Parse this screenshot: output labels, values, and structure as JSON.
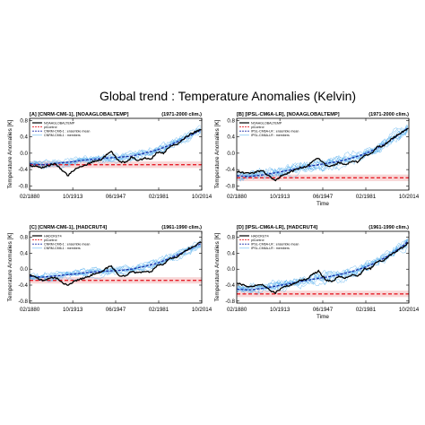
{
  "figure": {
    "title": "Global trend : Temperature Anomalies (Kelvin)"
  },
  "colors": {
    "obs": "#000000",
    "picontrol": "#e8202a",
    "ensemble_mean": "#1a2ea8",
    "members": "#5fb4ee",
    "band": "#f2b6b6"
  },
  "chart_data": [
    {
      "type": "line",
      "panel_title": "[A] [CNRM-CM6-1], [NOAAGLOBALTEMP]",
      "climatology": "(1971-2000 clim.)",
      "xlabel": "",
      "ylabel": "Temperature Anomalies [K]",
      "x_tick_labels": [
        "02/1880",
        "10/1913",
        "06/1947",
        "02/1981",
        "10/2014"
      ],
      "x_ticks": [
        1880.1,
        1913.8,
        1947.4,
        1981.1,
        2014.8
      ],
      "xlim": [
        1880,
        2014.8
      ],
      "ylim": [
        -0.9,
        0.85
      ],
      "y_ticks": [
        -0.8,
        -0.4,
        0.0,
        0.4,
        0.8
      ],
      "legend": [
        "NOAAGLOBALTEMP",
        "piControl",
        "CNRM-CM6-1 : ensemble mean",
        "CNRM-CM6-1 : members"
      ],
      "legend_position": "top-left",
      "picontrol_level": -0.28,
      "picontrol_band": [
        -0.36,
        -0.2
      ],
      "obs": {
        "x": [
          1880,
          1890,
          1900,
          1905,
          1910,
          1915,
          1920,
          1925,
          1930,
          1935,
          1940,
          1944,
          1950,
          1955,
          1960,
          1965,
          1970,
          1975,
          1980,
          1985,
          1990,
          1995,
          2000,
          2005,
          2010,
          2014
        ],
        "y": [
          -0.3,
          -0.35,
          -0.25,
          -0.4,
          -0.55,
          -0.4,
          -0.32,
          -0.27,
          -0.2,
          -0.18,
          -0.05,
          0.03,
          -0.2,
          -0.23,
          -0.1,
          -0.18,
          -0.12,
          -0.15,
          0.03,
          0.0,
          0.18,
          0.2,
          0.33,
          0.45,
          0.52,
          0.58
        ]
      },
      "ensemble_mean": {
        "x": [
          1880,
          1890,
          1900,
          1910,
          1920,
          1930,
          1940,
          1950,
          1960,
          1970,
          1980,
          1990,
          2000,
          2010,
          2014
        ],
        "y": [
          -0.26,
          -0.28,
          -0.25,
          -0.22,
          -0.18,
          -0.15,
          -0.12,
          -0.1,
          -0.07,
          0.0,
          0.08,
          0.2,
          0.34,
          0.5,
          0.56
        ]
      },
      "members_spread": 0.12,
      "members_count": 10
    },
    {
      "type": "line",
      "panel_title": "[B] [IPSL-CM6A-LR], [NOAAGLOBALTEMP]",
      "climatology": "(1971-2000 clim.)",
      "xlabel": "Time",
      "ylabel": "Temperature Anomalies [K]",
      "x_tick_labels": [
        "02/1880",
        "10/1913",
        "06/1947",
        "02/1981",
        "10/2014"
      ],
      "x_ticks": [
        1880.1,
        1913.8,
        1947.4,
        1981.1,
        2014.8
      ],
      "xlim": [
        1880,
        2014.8
      ],
      "ylim": [
        -0.9,
        0.85
      ],
      "y_ticks": [
        -0.8,
        -0.4,
        0.0,
        0.4,
        0.8
      ],
      "legend": [
        "NOAAGLOBALTEMP",
        "piControl",
        "IPSL-CM6A-LR : ensemble mean",
        "IPSL-CM6A-LR : members"
      ],
      "legend_position": "top-left",
      "picontrol_level": -0.6,
      "picontrol_band": [
        -0.68,
        -0.52
      ],
      "obs": {
        "x": [
          1880,
          1890,
          1900,
          1905,
          1910,
          1915,
          1920,
          1925,
          1930,
          1935,
          1940,
          1944,
          1950,
          1955,
          1960,
          1965,
          1970,
          1975,
          1980,
          1985,
          1990,
          1995,
          2000,
          2005,
          2010,
          2014
        ],
        "y": [
          -0.45,
          -0.5,
          -0.42,
          -0.55,
          -0.68,
          -0.55,
          -0.48,
          -0.42,
          -0.35,
          -0.32,
          -0.2,
          -0.12,
          -0.3,
          -0.32,
          -0.22,
          -0.28,
          -0.2,
          -0.22,
          -0.05,
          -0.02,
          0.15,
          0.18,
          0.32,
          0.42,
          0.52,
          0.6
        ]
      },
      "ensemble_mean": {
        "x": [
          1880,
          1890,
          1900,
          1910,
          1920,
          1930,
          1940,
          1950,
          1960,
          1970,
          1980,
          1990,
          2000,
          2010,
          2014
        ],
        "y": [
          -0.55,
          -0.57,
          -0.53,
          -0.48,
          -0.42,
          -0.36,
          -0.3,
          -0.25,
          -0.2,
          -0.12,
          -0.02,
          0.12,
          0.3,
          0.52,
          0.62
        ]
      },
      "members_spread": 0.16,
      "members_count": 10
    },
    {
      "type": "line",
      "panel_title": "[C] [CNRM-CM6-1], [HADCRUT4]",
      "climatology": "(1961-1990 clim.)",
      "xlabel": "",
      "ylabel": "Temperature Anomalies [K]",
      "x_tick_labels": [
        "02/1880",
        "10/1913",
        "06/1947",
        "02/1981",
        "10/2014"
      ],
      "x_ticks": [
        1880.1,
        1913.8,
        1947.4,
        1981.1,
        2014.8
      ],
      "xlim": [
        1880,
        2014.8
      ],
      "ylim": [
        -0.85,
        0.95
      ],
      "y_ticks": [
        -0.8,
        -0.4,
        0.0,
        0.4,
        0.8
      ],
      "legend": [
        "HADCRUT4",
        "piControl",
        "CNRM-CM6-1 : ensemble mean",
        "CNRM-CM6-1 : members"
      ],
      "legend_position": "top-left",
      "picontrol_level": -0.28,
      "picontrol_band": [
        -0.36,
        -0.2
      ],
      "obs": {
        "x": [
          1880,
          1890,
          1900,
          1905,
          1910,
          1915,
          1920,
          1925,
          1930,
          1935,
          1940,
          1944,
          1950,
          1955,
          1960,
          1965,
          1970,
          1975,
          1980,
          1985,
          1990,
          1995,
          2000,
          2005,
          2010,
          2014
        ],
        "y": [
          -0.15,
          -0.28,
          -0.2,
          -0.32,
          -0.42,
          -0.3,
          -0.25,
          -0.2,
          -0.12,
          -0.1,
          0.02,
          0.08,
          -0.15,
          -0.18,
          -0.05,
          -0.1,
          -0.05,
          -0.08,
          0.1,
          0.12,
          0.28,
          0.3,
          0.42,
          0.52,
          0.6,
          0.68
        ]
      },
      "ensemble_mean": {
        "x": [
          1880,
          1890,
          1900,
          1910,
          1920,
          1930,
          1940,
          1950,
          1960,
          1970,
          1980,
          1990,
          2000,
          2010,
          2014
        ],
        "y": [
          -0.18,
          -0.2,
          -0.17,
          -0.14,
          -0.1,
          -0.07,
          -0.05,
          -0.03,
          0.0,
          0.07,
          0.15,
          0.28,
          0.42,
          0.58,
          0.64
        ]
      },
      "members_spread": 0.12,
      "members_count": 10
    },
    {
      "type": "line",
      "panel_title": "[D] [IPSL-CM6A-LR], [HADCRUT4]",
      "climatology": "(1961-1990 clim.)",
      "xlabel": "Time",
      "ylabel": "Temperature Anomalies [K]",
      "x_tick_labels": [
        "02/1880",
        "10/1913",
        "06/1947",
        "02/1981",
        "10/2014"
      ],
      "x_ticks": [
        1880.1,
        1913.8,
        1947.4,
        1981.1,
        2014.8
      ],
      "xlim": [
        1880,
        2014.8
      ],
      "ylim": [
        -0.85,
        0.95
      ],
      "y_ticks": [
        -0.8,
        -0.4,
        0.0,
        0.4,
        0.8
      ],
      "legend": [
        "HADCRUT4",
        "piControl",
        "IPSL-CM6A-LR : ensemble mean",
        "IPSL-CM6A-LR : members"
      ],
      "legend_position": "top-left",
      "picontrol_level": -0.62,
      "picontrol_band": [
        -0.7,
        -0.54
      ],
      "obs": {
        "x": [
          1880,
          1890,
          1900,
          1905,
          1910,
          1915,
          1920,
          1925,
          1930,
          1935,
          1940,
          1944,
          1950,
          1955,
          1960,
          1965,
          1970,
          1975,
          1980,
          1985,
          1990,
          1995,
          2000,
          2005,
          2010,
          2014
        ],
        "y": [
          -0.35,
          -0.45,
          -0.38,
          -0.5,
          -0.6,
          -0.48,
          -0.42,
          -0.36,
          -0.28,
          -0.25,
          -0.12,
          -0.05,
          -0.28,
          -0.3,
          -0.18,
          -0.22,
          -0.15,
          -0.18,
          0.0,
          0.02,
          0.2,
          0.22,
          0.35,
          0.45,
          0.55,
          0.65
        ]
      },
      "ensemble_mean": {
        "x": [
          1880,
          1890,
          1900,
          1910,
          1920,
          1930,
          1940,
          1950,
          1960,
          1970,
          1980,
          1990,
          2000,
          2010,
          2014
        ],
        "y": [
          -0.5,
          -0.52,
          -0.48,
          -0.43,
          -0.37,
          -0.31,
          -0.25,
          -0.2,
          -0.14,
          -0.06,
          0.04,
          0.18,
          0.36,
          0.58,
          0.7
        ]
      },
      "members_spread": 0.16,
      "members_count": 10
    }
  ]
}
